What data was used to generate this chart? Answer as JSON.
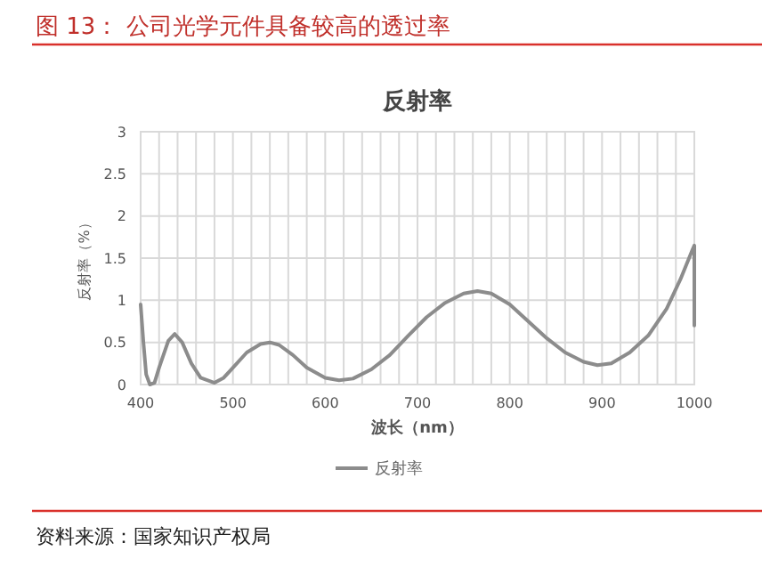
{
  "chart_data": {
    "type": "line",
    "title": "图 13：  公司光学元件具备较高的透过率",
    "subtitle": "反射率",
    "xlabel": "波长（nm）",
    "ylabel": "反射率（%）",
    "annotations": [
      "资料来源：国家知识产权局"
    ],
    "xlim": [
      400,
      1000
    ],
    "ylim": [
      0,
      3
    ],
    "xticks": [
      400,
      {
        "value": 420,
        "label": null
      },
      {
        "value": 440,
        "label": null
      },
      {
        "value": 460,
        "label": null
      },
      {
        "value": 480,
        "label": null
      },
      500,
      {
        "value": 520,
        "label": null
      },
      {
        "value": 540,
        "label": null
      },
      {
        "value": 560,
        "label": null
      },
      {
        "value": 580,
        "label": null
      },
      600,
      {
        "value": 620,
        "label": null
      },
      {
        "value": 640,
        "label": null
      },
      {
        "value": 660,
        "label": null
      },
      {
        "value": 680,
        "label": null
      },
      700,
      {
        "value": 720,
        "label": null
      },
      {
        "value": 740,
        "label": null
      },
      {
        "value": 760,
        "label": null
      },
      {
        "value": 780,
        "label": null
      },
      800,
      {
        "value": 820,
        "label": null
      },
      {
        "value": 840,
        "label": null
      },
      {
        "value": 860,
        "label": null
      },
      {
        "value": 880,
        "label": null
      },
      900,
      {
        "value": 920,
        "label": null
      },
      {
        "value": 940,
        "label": null
      },
      {
        "value": 960,
        "label": null
      },
      {
        "value": 980,
        "label": null
      },
      1000
    ],
    "yticks": [
      0,
      0.5,
      1,
      1.5,
      2,
      2.5,
      3
    ],
    "grid": true,
    "legend": "bottom",
    "marker": "none",
    "line_style": "solid",
    "series": [
      {
        "name": "反射率",
        "color": "#8c8c8c",
        "x": [
          400,
          403,
          406,
          410,
          415,
          420,
          430,
          437,
          445,
          455,
          465,
          480,
          490,
          500,
          515,
          530,
          540,
          550,
          565,
          580,
          600,
          615,
          630,
          650,
          670,
          690,
          710,
          730,
          750,
          765,
          780,
          800,
          820,
          840,
          860,
          880,
          895,
          910,
          930,
          950,
          970,
          985,
          998,
          1000,
          1000
        ],
        "values": [
          0.95,
          0.5,
          0.12,
          0,
          0.02,
          0.2,
          0.52,
          0.6,
          0.5,
          0.25,
          0.08,
          0.02,
          0.08,
          0.2,
          0.38,
          0.48,
          0.5,
          0.47,
          0.35,
          0.2,
          0.08,
          0.05,
          0.07,
          0.18,
          0.35,
          0.58,
          0.8,
          0.97,
          1.08,
          1.11,
          1.08,
          0.95,
          0.75,
          0.55,
          0.38,
          0.27,
          0.23,
          0.25,
          0.38,
          0.58,
          0.9,
          1.25,
          1.6,
          1.65,
          0.7
        ]
      }
    ]
  }
}
